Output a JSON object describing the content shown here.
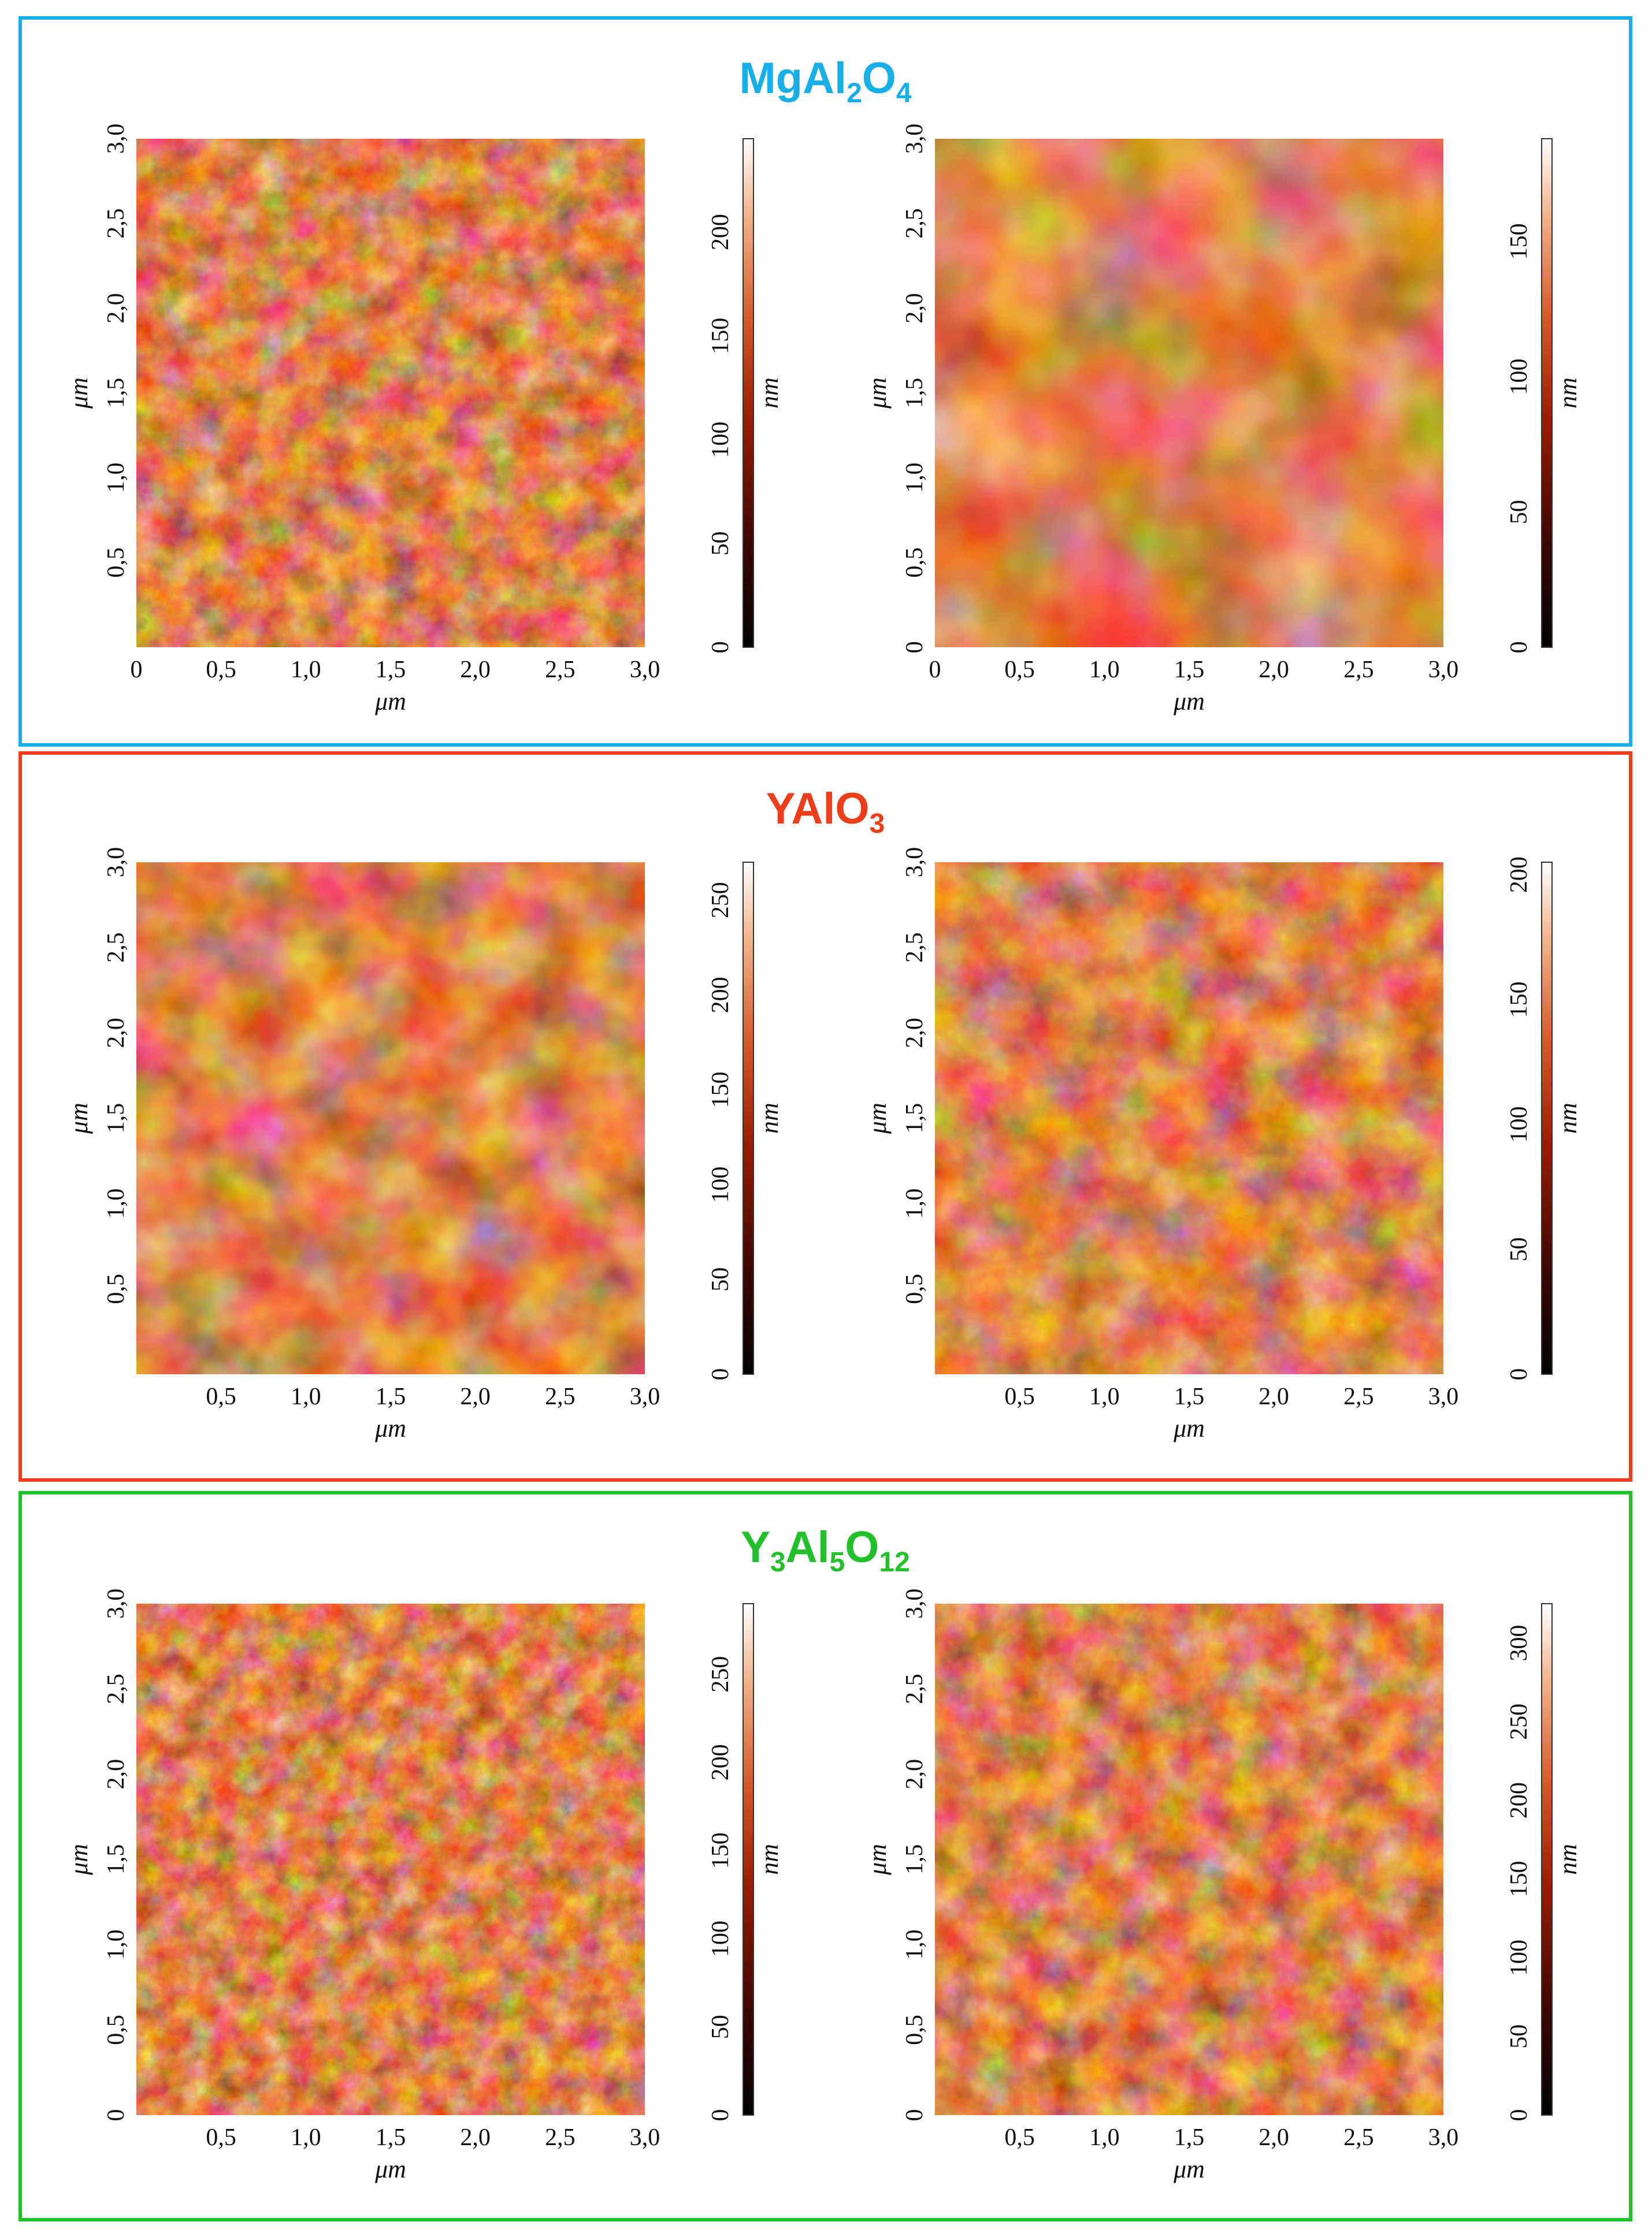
{
  "sections": [
    {
      "material_main": "MgAl",
      "sub1": "2",
      "mid": "O",
      "sub2": "4",
      "tail": "",
      "sub3": "",
      "color": "#18aee8",
      "panels": [
        {
          "scale_ticks": [
            "0",
            "50",
            "100",
            "150",
            "200"
          ],
          "scale_max": 245,
          "x_ticks": [
            "0",
            "0,5",
            "1,0",
            "1,5",
            "2,0",
            "2,5",
            "3,0"
          ],
          "y_ticks": [
            "0,5",
            "1,0",
            "1,5",
            "2,0",
            "2,5",
            "3,0"
          ]
        },
        {
          "scale_ticks": [
            "0",
            "50",
            "100",
            "150"
          ],
          "scale_max": 188,
          "x_ticks": [
            "0",
            "0,5",
            "1,0",
            "1,5",
            "2,0",
            "2,5",
            "3,0"
          ],
          "y_ticks": [
            "0",
            "0,5",
            "1,0",
            "1,5",
            "2,0",
            "2,5",
            "3,0"
          ]
        }
      ]
    },
    {
      "material_main": "YAlO",
      "sub1": "3",
      "mid": "",
      "sub2": "",
      "tail": "",
      "sub3": "",
      "color": "#ee3d1b",
      "panels": [
        {
          "scale_ticks": [
            "0",
            "50",
            "100",
            "150",
            "200",
            "250"
          ],
          "scale_max": 270,
          "x_ticks": [
            "0,5",
            "1,0",
            "1,5",
            "2,0",
            "2,5",
            "3,0"
          ],
          "y_ticks": [
            "0,5",
            "1,0",
            "1,5",
            "2,0",
            "2,5",
            "3,0"
          ]
        },
        {
          "scale_ticks": [
            "0",
            "50",
            "100",
            "150",
            "200"
          ],
          "scale_max": 205,
          "x_ticks": [
            "0,5",
            "1,0",
            "1,5",
            "2,0",
            "2,5",
            "3,0"
          ],
          "y_ticks": [
            "0,5",
            "1,0",
            "1,5",
            "2,0",
            "2,5",
            "3,0"
          ]
        }
      ]
    },
    {
      "material_main": "Y",
      "sub1": "3",
      "mid": "Al",
      "sub2": "5",
      "tail": "O",
      "sub3": "12",
      "color": "#22c02a",
      "panels": [
        {
          "scale_ticks": [
            "0",
            "50",
            "100",
            "150",
            "200",
            "250"
          ],
          "scale_max": 290,
          "x_ticks": [
            "0,5",
            "1,0",
            "1,5",
            "2,0",
            "2,5",
            "3,0"
          ],
          "y_ticks": [
            "0",
            "0,5",
            "1,0",
            "1,5",
            "2,0",
            "2,5",
            "3,0"
          ]
        },
        {
          "scale_ticks": [
            "0",
            "50",
            "100",
            "150",
            "200",
            "250",
            "300"
          ],
          "scale_max": 325,
          "x_ticks": [
            "0,5",
            "1,0",
            "1,5",
            "2,0",
            "2,5",
            "3,0"
          ],
          "y_ticks": [
            "0",
            "0,5",
            "1,0",
            "1,5",
            "2,0",
            "2,5",
            "3,0"
          ]
        }
      ]
    }
  ],
  "axis_label": "μm",
  "scale_unit": "nm"
}
